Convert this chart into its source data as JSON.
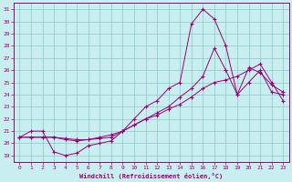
{
  "xlabel": "Windchill (Refroidissement éolien,°C)",
  "bg_color": "#c8eef0",
  "grid_color": "#8cc8c8",
  "line_color": "#990077",
  "xlim": [
    -0.5,
    23.5
  ],
  "ylim": [
    18.5,
    31.5
  ],
  "xticks": [
    0,
    1,
    2,
    3,
    4,
    5,
    6,
    7,
    8,
    9,
    10,
    11,
    12,
    13,
    14,
    15,
    16,
    17,
    18,
    19,
    20,
    21,
    22,
    23
  ],
  "yticks": [
    19,
    20,
    21,
    22,
    23,
    24,
    25,
    26,
    27,
    28,
    29,
    30,
    31
  ],
  "line1_x": [
    0,
    1,
    2,
    3,
    4,
    5,
    6,
    7,
    8,
    9,
    10,
    11,
    12,
    13,
    14,
    15,
    16,
    17,
    18,
    19,
    20,
    21,
    22,
    23
  ],
  "line1_y": [
    20.5,
    21.0,
    21.0,
    19.3,
    19.0,
    19.2,
    19.8,
    20.0,
    20.2,
    21.0,
    22.0,
    23.0,
    23.5,
    24.5,
    25.0,
    29.8,
    31.0,
    30.2,
    28.0,
    24.0,
    25.0,
    26.0,
    24.2,
    24.0
  ],
  "line2_x": [
    0,
    1,
    2,
    3,
    4,
    5,
    6,
    7,
    8,
    9,
    10,
    11,
    12,
    13,
    14,
    15,
    16,
    17,
    18,
    19,
    20,
    21,
    22,
    23
  ],
  "line2_y": [
    20.5,
    20.5,
    20.5,
    20.5,
    20.3,
    20.2,
    20.3,
    20.4,
    20.5,
    21.0,
    21.5,
    22.0,
    22.5,
    23.0,
    23.8,
    24.5,
    25.5,
    27.8,
    26.0,
    24.0,
    26.2,
    25.8,
    24.8,
    24.2
  ],
  "line3_x": [
    0,
    1,
    2,
    3,
    4,
    5,
    6,
    7,
    8,
    9,
    10,
    11,
    12,
    13,
    14,
    15,
    16,
    17,
    18,
    19,
    20,
    21,
    22,
    23
  ],
  "line3_y": [
    20.5,
    20.5,
    20.5,
    20.5,
    20.4,
    20.3,
    20.3,
    20.5,
    20.7,
    21.0,
    21.5,
    22.0,
    22.3,
    22.8,
    23.2,
    23.8,
    24.5,
    25.0,
    25.2,
    25.5,
    26.0,
    26.5,
    25.0,
    23.5
  ]
}
